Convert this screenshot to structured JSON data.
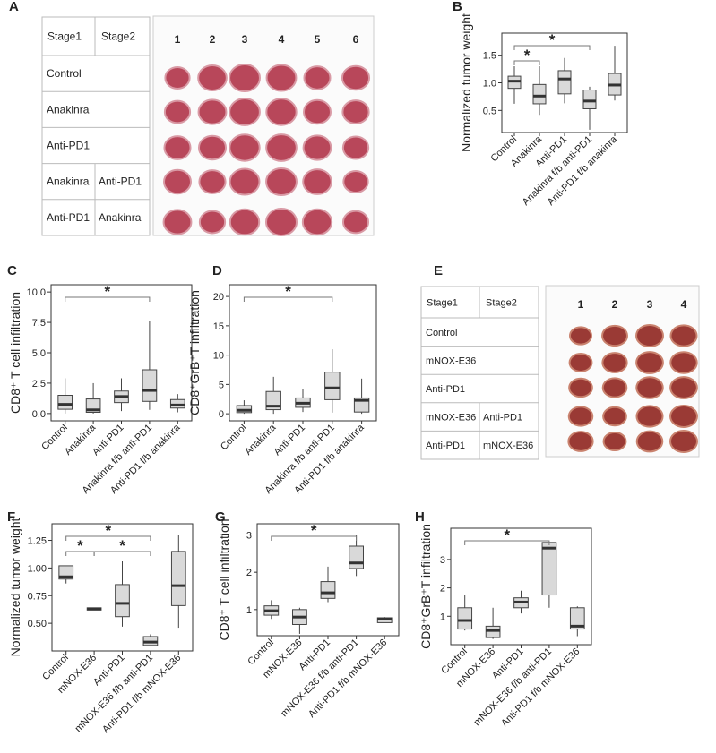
{
  "panels": [
    "A",
    "B",
    "C",
    "D",
    "E",
    "F",
    "G",
    "H"
  ],
  "tables": [
    {
      "header": [
        "Stage1",
        "Stage2"
      ],
      "rows": [
        [
          "Control"
        ],
        [
          "Anakinra"
        ],
        [
          "Anti-PD1"
        ],
        [
          "Anakinra",
          "Anti-PD1"
        ],
        [
          "Anti-PD1",
          "Anakinra"
        ]
      ],
      "columns": [
        "1",
        "2",
        "3",
        "4",
        "5",
        "6"
      ]
    },
    {
      "header": [
        "Stage1",
        "Stage2"
      ],
      "rows": [
        [
          "Control"
        ],
        [
          "mNOX-E36"
        ],
        [
          "Anti-PD1"
        ],
        [
          "mNOX-E36",
          "Anti-PD1"
        ],
        [
          "Anti-PD1",
          "mNOX-E36"
        ]
      ],
      "columns": [
        "1",
        "2",
        "3",
        "4"
      ]
    }
  ],
  "chart_data": [
    {
      "type": "box",
      "ylabel": "Normalized tumor weight",
      "color": "#d9d9d9",
      "categories": [
        "Control",
        "Anakinra",
        "Anti-PD1",
        "Anakinra f/b anti-PD1",
        "Anti-PD1 f/b anakinra"
      ],
      "min": [
        0.62,
        0.42,
        0.63,
        0.15,
        0.68
      ],
      "q1": [
        0.9,
        0.62,
        0.8,
        0.53,
        0.78
      ],
      "median": [
        1.03,
        0.76,
        1.07,
        0.67,
        0.96
      ],
      "q3": [
        1.12,
        0.97,
        1.22,
        0.87,
        1.17
      ],
      "max": [
        1.3,
        1.3,
        1.45,
        0.93,
        1.67
      ],
      "ylim": [
        0.1,
        1.9
      ],
      "yticks": [
        0.5,
        {
          "value": 1,
          "label": "1.0"
        },
        1.5
      ],
      "annotations": [
        {
          "from": 0,
          "to": 3,
          "label": "*"
        },
        {
          "from": 0,
          "to": 1,
          "label": "*"
        }
      ]
    },
    {
      "type": "box",
      "ylabel": "CD8⁺ T cell infiltration",
      "color": "#d9d9d9",
      "categories": [
        "Control",
        "Anakinra",
        "Anti-PD1",
        "Anakinra f/b anti-PD1",
        "Anti-PD1 f/b anakinra"
      ],
      "min": [
        0,
        0,
        0.2,
        0.3,
        0.1
      ],
      "q1": [
        0.35,
        0.1,
        0.9,
        1.0,
        0.45
      ],
      "median": [
        0.75,
        0.3,
        1.4,
        1.9,
        0.7
      ],
      "q3": [
        1.5,
        1.2,
        1.85,
        3.6,
        1.15
      ],
      "max": [
        2.9,
        2.5,
        2.9,
        7.6,
        1.6
      ],
      "ylim": [
        -0.6,
        10.6
      ],
      "yticks": [
        {
          "value": 0,
          "label": "0.0"
        },
        2.5,
        {
          "value": 5,
          "label": "5.0"
        },
        7.5,
        {
          "value": 10,
          "label": "10.0"
        }
      ],
      "annotations": [
        {
          "from": 0,
          "to": 3,
          "label": "*"
        }
      ]
    },
    {
      "type": "box",
      "ylabel": "CD8⁺GrB⁺T infiltration",
      "color": "#d9d9d9",
      "categories": [
        "Control",
        "Anakinra",
        "Anti-PD1",
        "Anakinra f/b anti-PD1",
        "Anti-PD1 f/b anakinra"
      ],
      "min": [
        0,
        0,
        0.3,
        0.2,
        0
      ],
      "q1": [
        0.2,
        0.7,
        1.1,
        2.4,
        0.3
      ],
      "median": [
        0.6,
        1.3,
        1.8,
        4.4,
        2.3
      ],
      "q3": [
        1.4,
        3.8,
        2.7,
        7.1,
        2.7
      ],
      "max": [
        2.3,
        6.3,
        4.3,
        11,
        6
      ],
      "ylim": [
        -1.2,
        22
      ],
      "yticks": [
        0,
        5,
        10,
        15,
        20
      ],
      "annotations": [
        {
          "from": 0,
          "to": 3,
          "label": "*"
        }
      ]
    },
    {
      "type": "box",
      "ylabel": "Normalized tumor weight",
      "color": "#d9d9d9",
      "categories": [
        "Control",
        "mNOX-E36",
        "Anti-PD1",
        "mNOX-E36 f/b anti-PD1",
        "Anti-PD1 f/b mNOX-E36"
      ],
      "min": [
        0.86,
        0.62,
        0.47,
        0.3,
        0.46
      ],
      "q1": [
        0.9,
        0.62,
        0.56,
        0.3,
        0.66
      ],
      "median": [
        0.92,
        0.63,
        0.68,
        0.33,
        0.84
      ],
      "q3": [
        1.02,
        0.64,
        0.85,
        0.38,
        1.15
      ],
      "max": [
        1.02,
        0.64,
        1.06,
        0.4,
        1.3
      ],
      "ylim": [
        0.25,
        1.4
      ],
      "yticks": [
        {
          "value": 0.5,
          "label": "0.50"
        },
        0.75,
        {
          "value": 1,
          "label": "1.00"
        },
        1.25
      ],
      "annotations": [
        {
          "from": 0,
          "to": 3,
          "label": "*"
        },
        {
          "from": 0,
          "to": 1,
          "label": "*"
        },
        {
          "from": 1,
          "to": 3,
          "label": "*"
        }
      ]
    },
    {
      "type": "box",
      "ylabel": "CD8⁺ T cell infiltration",
      "color": "#d9d9d9",
      "categories": [
        "Control",
        "mNOX-E36",
        "Anti-PD1",
        "mNOX-E36 f/b anti-PD1",
        "Anti-PD1 f/b mNOX-E36"
      ],
      "min": [
        0.75,
        0.35,
        1.2,
        1.9,
        0.65
      ],
      "q1": [
        0.85,
        0.6,
        1.3,
        2.1,
        0.65
      ],
      "median": [
        0.97,
        0.8,
        1.45,
        2.25,
        0.75
      ],
      "q3": [
        1.1,
        1.0,
        1.75,
        2.7,
        0.78
      ],
      "max": [
        1.25,
        1.05,
        2.15,
        3.0,
        0.8
      ],
      "ylim": [
        0.3,
        3.3
      ],
      "yticks": [
        1,
        2,
        3
      ],
      "annotations": [
        {
          "from": 0,
          "to": 3,
          "label": "*"
        }
      ]
    },
    {
      "type": "box",
      "ylabel": "CD8⁺GrB⁺T infiltration",
      "color": "#d9d9d9",
      "categories": [
        "Control",
        "mNOX-E36",
        "Anti-PD1",
        "mNOX-E36 f/b anti-PD1",
        "Anti-PD1 f/b mNOX-E36"
      ],
      "min": [
        0.5,
        0.2,
        1.1,
        1.3,
        0.3
      ],
      "q1": [
        0.55,
        0.25,
        1.3,
        1.75,
        0.55
      ],
      "median": [
        0.85,
        0.5,
        1.5,
        3.4,
        0.65
      ],
      "q3": [
        1.3,
        0.65,
        1.65,
        3.6,
        1.3
      ],
      "max": [
        1.75,
        1.3,
        1.9,
        3.6,
        1.35
      ],
      "ylim": [
        0,
        4.1
      ],
      "yticks": [
        1,
        2,
        3
      ],
      "annotations": [
        {
          "from": 0,
          "to": 3,
          "label": "*"
        }
      ]
    }
  ]
}
